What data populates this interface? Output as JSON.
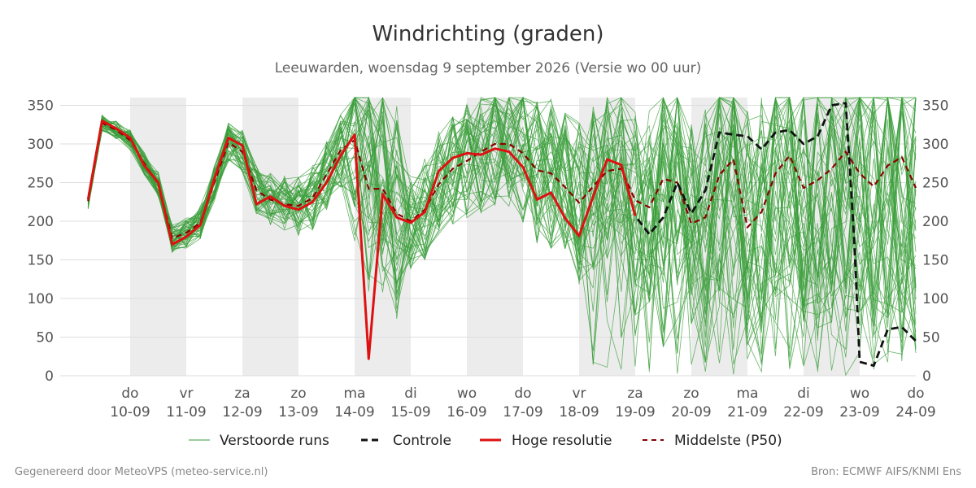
{
  "chart_data": {
    "type": "line",
    "title": "Windrichting (graden)",
    "subtitle": "Leeuwarden, woensdag  9 september 2026 (Versie wo 00 uur)",
    "ylim": [
      0,
      360
    ],
    "y_ticks": [
      0,
      50,
      100,
      150,
      200,
      250,
      300,
      350
    ],
    "x_range": [
      -1.25,
      14
    ],
    "x_ticks": [
      {
        "x": 0,
        "day": "do",
        "date": "10-09"
      },
      {
        "x": 1,
        "day": "vr",
        "date": "11-09"
      },
      {
        "x": 2,
        "day": "za",
        "date": "12-09"
      },
      {
        "x": 3,
        "day": "zo",
        "date": "13-09"
      },
      {
        "x": 4,
        "day": "ma",
        "date": "14-09"
      },
      {
        "x": 5,
        "day": "di",
        "date": "15-09"
      },
      {
        "x": 6,
        "day": "wo",
        "date": "16-09"
      },
      {
        "x": 7,
        "day": "do",
        "date": "17-09"
      },
      {
        "x": 8,
        "day": "vr",
        "date": "18-09"
      },
      {
        "x": 9,
        "day": "za",
        "date": "19-09"
      },
      {
        "x": 10,
        "day": "zo",
        "date": "20-09"
      },
      {
        "x": 11,
        "day": "ma",
        "date": "21-09"
      },
      {
        "x": 12,
        "day": "di",
        "date": "22-09"
      },
      {
        "x": 13,
        "day": "wo",
        "date": "23-09"
      },
      {
        "x": 14,
        "day": "do",
        "date": "24-09"
      }
    ],
    "shaded_days": [
      [
        0,
        1
      ],
      [
        2,
        3
      ],
      [
        4,
        5
      ],
      [
        6,
        7
      ],
      [
        8,
        9
      ],
      [
        10,
        11
      ],
      [
        12,
        13
      ]
    ],
    "grid": true,
    "legend_position": "bottom",
    "colors": {
      "ensemble": "#3a9e3a",
      "control": "#111111",
      "hires": "#dd1111",
      "median": "#8b0000",
      "shade": "#ececec",
      "grid": "#dddddd"
    },
    "series": [
      {
        "name": "Hoge resolutie",
        "style": "hires",
        "x": [
          -0.75,
          -0.5,
          -0.25,
          0,
          0.25,
          0.5,
          0.75,
          1,
          1.25,
          1.5,
          1.75,
          2,
          2.25,
          2.5,
          2.75,
          3,
          3.25,
          3.5,
          3.75,
          4,
          4.25,
          4.5,
          4.75,
          5,
          5.25,
          5.5,
          5.75,
          6,
          6.25,
          6.5,
          6.75,
          7,
          7.25,
          7.5,
          7.75,
          8,
          8.25,
          8.5,
          8.75,
          9
        ],
        "values": [
          228,
          330,
          320,
          308,
          272,
          250,
          170,
          180,
          195,
          255,
          308,
          298,
          222,
          232,
          220,
          215,
          225,
          250,
          285,
          312,
          22,
          235,
          205,
          198,
          212,
          265,
          282,
          288,
          286,
          294,
          290,
          270,
          228,
          237,
          204,
          181,
          232,
          280,
          273,
          207
        ]
      },
      {
        "name": "Controle",
        "style": "control",
        "x": [
          8.75,
          9,
          9.25,
          9.5,
          9.75,
          10,
          10.25,
          10.5,
          10.75,
          11,
          11.25,
          11.5,
          11.75,
          12,
          12.25,
          12.5,
          12.75,
          12.9,
          13,
          13.25,
          13.5,
          13.75,
          14
        ],
        "values": [
          273,
          207,
          183,
          205,
          250,
          210,
          240,
          315,
          312,
          310,
          293,
          315,
          318,
          300,
          310,
          350,
          353,
          180,
          18,
          13,
          60,
          63,
          45
        ]
      },
      {
        "name": "Middelste (P50)",
        "style": "median",
        "x": [
          -0.75,
          -0.5,
          -0.25,
          0,
          0.25,
          0.5,
          0.75,
          1,
          1.25,
          1.5,
          1.75,
          2,
          2.25,
          2.5,
          2.75,
          3,
          3.25,
          3.5,
          3.75,
          4,
          4.25,
          4.5,
          4.75,
          5,
          5.25,
          5.5,
          5.75,
          6,
          6.25,
          6.5,
          6.75,
          7,
          7.25,
          7.5,
          7.75,
          8,
          8.25,
          8.5,
          8.75,
          9,
          9.25,
          9.5,
          9.75,
          10,
          10.25,
          10.5,
          10.75,
          11,
          11.25,
          11.5,
          11.75,
          12,
          12.25,
          12.5,
          12.75,
          13,
          13.25,
          13.5,
          13.75,
          14
        ],
        "values": [
          226,
          327,
          318,
          305,
          275,
          248,
          178,
          185,
          198,
          250,
          302,
          290,
          240,
          228,
          222,
          220,
          230,
          260,
          292,
          305,
          242,
          242,
          210,
          200,
          215,
          248,
          268,
          278,
          290,
          300,
          300,
          288,
          266,
          262,
          244,
          224,
          245,
          265,
          268,
          227,
          218,
          255,
          250,
          197,
          205,
          260,
          280,
          192,
          212,
          262,
          285,
          243,
          253,
          268,
          290,
          262,
          245,
          272,
          283,
          243
        ]
      }
    ],
    "ensemble": {
      "name": "Verstoorde runs"
    },
    "legend": [
      "Verstoorde runs",
      "Controle",
      "Hoge resolutie",
      "Middelste (P50)"
    ]
  },
  "footer": {
    "left": "Gegenereerd door MeteoVPS (meteo-service.nl)",
    "right": "Bron: ECMWF AIFS/KNMI Ens"
  }
}
